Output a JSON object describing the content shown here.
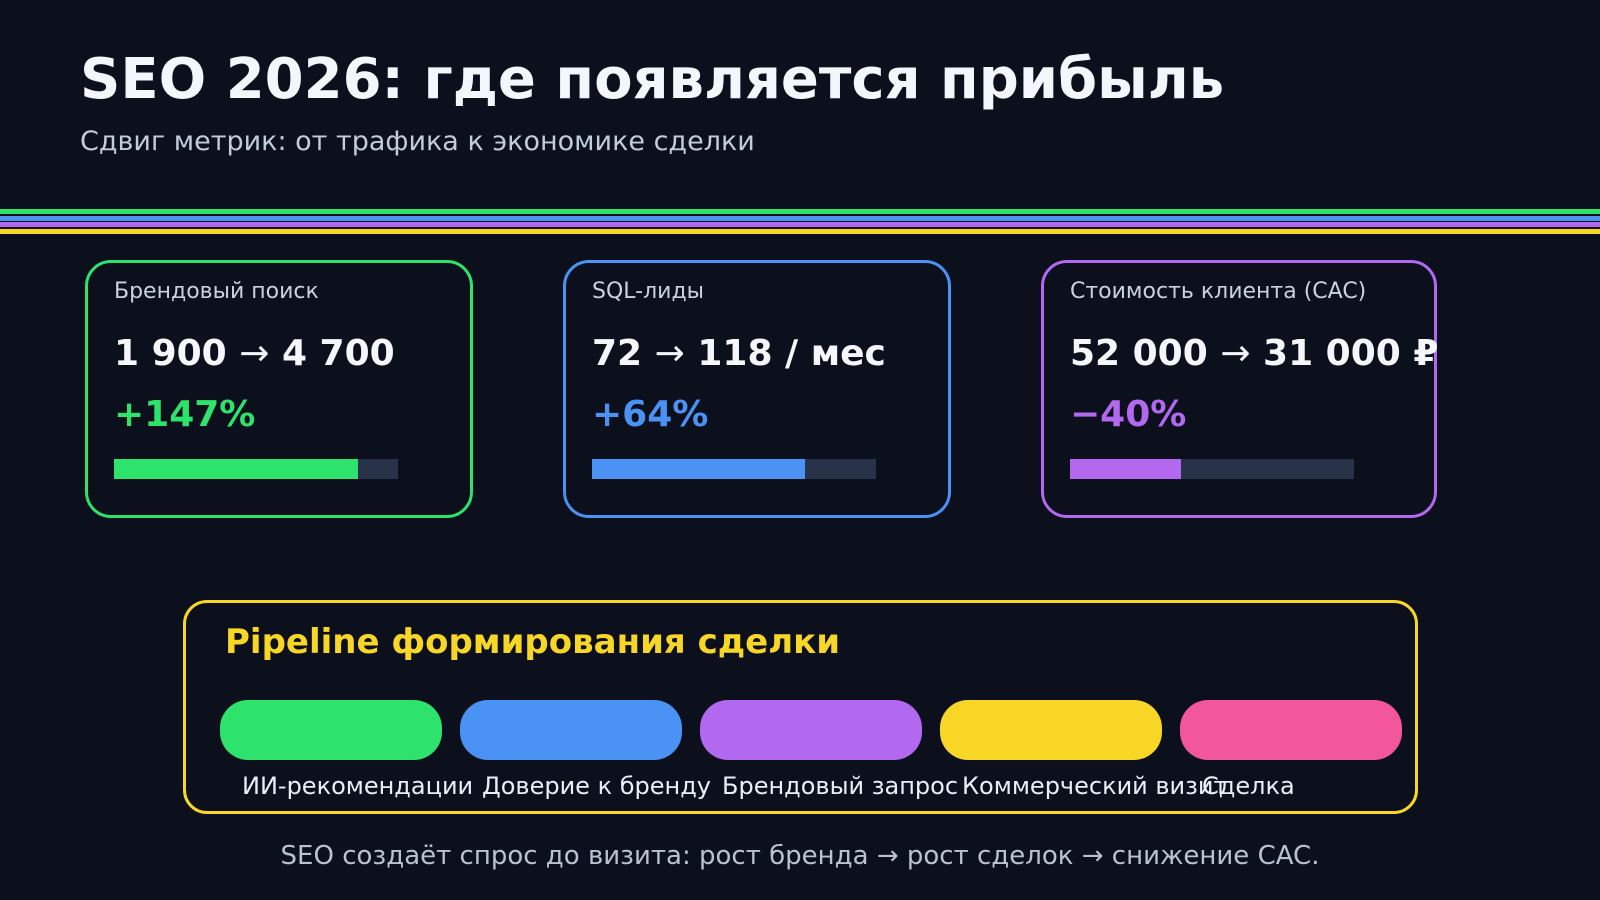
{
  "header": {
    "title": "SEO 2026: где появляется прибыль",
    "subtitle": "Сдвиг метрик: от трафика к экономике сделки"
  },
  "divider": {
    "colors": [
      "#2ee36b",
      "#4a93f5",
      "#b368f0",
      "#f8d626"
    ]
  },
  "cards": [
    {
      "label": "Брендовый поиск",
      "value": "1 900 → 4 700",
      "delta": "+147%",
      "accent": "#2ee36b",
      "progress_width": "86%"
    },
    {
      "label": "SQL-лиды",
      "value": "72 → 118 / мес",
      "delta": "+64%",
      "accent": "#4a93f5",
      "progress_width": "75%"
    },
    {
      "label": "Стоимость клиента (CAC)",
      "value": "52 000 → 31 000 ₽",
      "delta": "−40%",
      "accent": "#b368f0",
      "progress_width": "39%"
    }
  ],
  "pipeline": {
    "title": "Pipeline формирования сделки",
    "accent": "#f8d626",
    "stages": [
      {
        "label": "ИИ-рекомендации",
        "color": "#2ee36b"
      },
      {
        "label": "Доверие к бренду",
        "color": "#4a93f5"
      },
      {
        "label": "Брендовый запрос",
        "color": "#b368f0"
      },
      {
        "label": "Коммерческий визит",
        "color": "#f8d626"
      },
      {
        "label": "Сделка",
        "color": "#f2569d"
      }
    ]
  },
  "footer": {
    "note": "SEO создаёт спрос до визита: рост бренда → рост сделок → снижение CAC."
  }
}
